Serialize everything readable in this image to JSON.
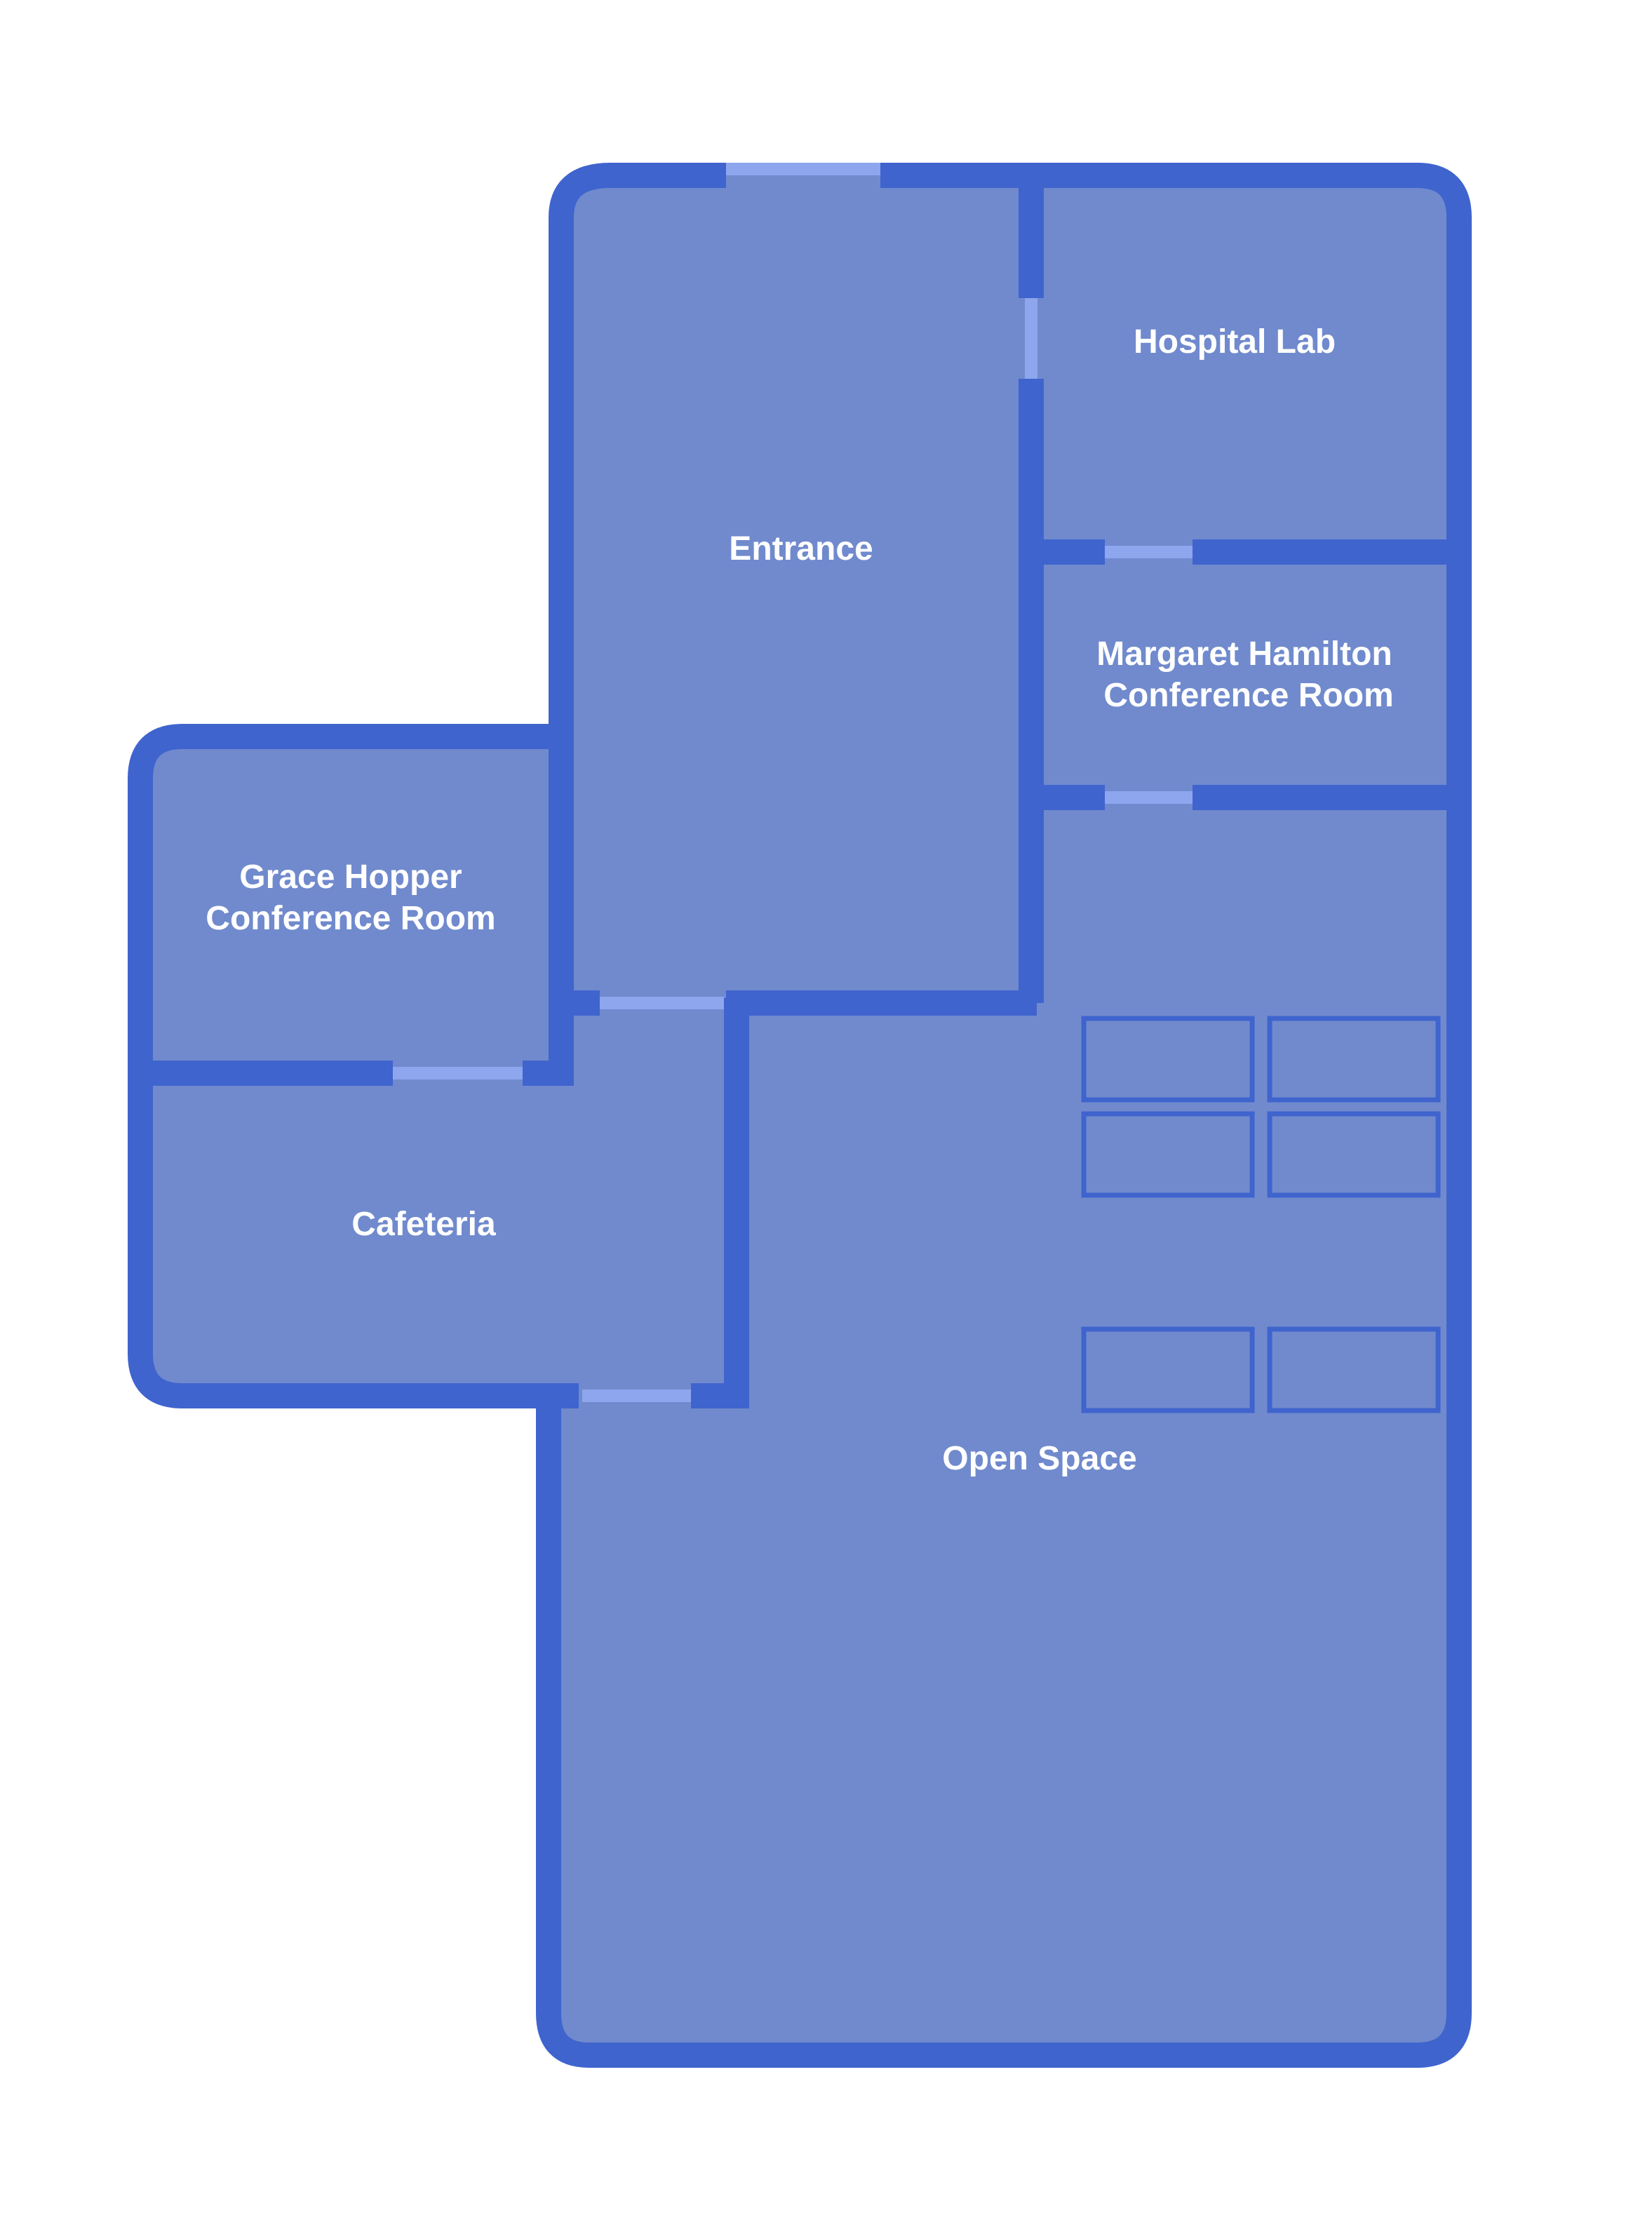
{
  "colors": {
    "floor": "#708ACD",
    "wall": "#3F64CE",
    "door": "#8DA6EE",
    "label": "#FFFFFF",
    "background": "#FFFFFF"
  },
  "rooms": {
    "hospital_lab": {
      "label": "Hospital Lab"
    },
    "entrance": {
      "label": "Entrance"
    },
    "margaret_hamilton": {
      "line1": "Margaret Hamilton",
      "line2": "Conference Room"
    },
    "grace_hopper": {
      "line1": "Grace Hopper",
      "line2": "Conference Room"
    },
    "cafeteria": {
      "label": "Cafeteria"
    },
    "open_space": {
      "label": "Open Space"
    }
  }
}
